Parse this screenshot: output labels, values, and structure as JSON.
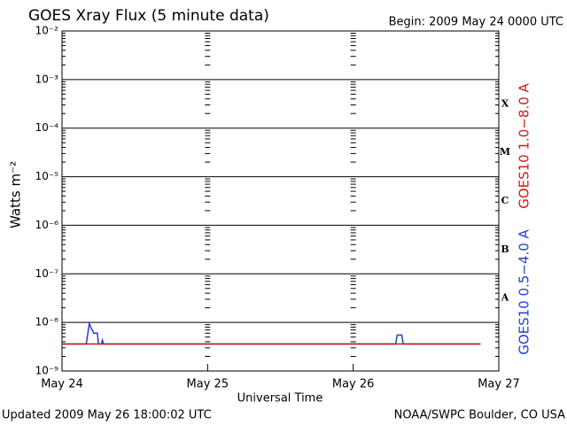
{
  "chart_data": {
    "type": "line",
    "title": "GOES Xray Flux (5 minute data)",
    "begin_label": "Begin:  2009 May 24 0000 UTC",
    "ylabel": "Watts m⁻²",
    "xlabel": "Universal Time",
    "updated": "Updated 2009 May 26 18:00:02 UTC",
    "source": "NOAA/SWPC Boulder, CO USA",
    "log_y": true,
    "grid": true,
    "ylim": [
      1e-09,
      0.01
    ],
    "yticks": [
      {
        "value": 1e-09,
        "label": "10⁻⁹"
      },
      {
        "value": 1e-08,
        "label": "10⁻⁸"
      },
      {
        "value": 1e-07,
        "label": "10⁻⁷"
      },
      {
        "value": 1e-06,
        "label": "10⁻⁶"
      },
      {
        "value": 1e-05,
        "label": "10⁻⁵"
      },
      {
        "value": 0.0001,
        "label": "10⁻⁴"
      },
      {
        "value": 0.001,
        "label": "10⁻³"
      },
      {
        "value": 0.01,
        "label": "10⁻²"
      }
    ],
    "xlim": [
      "2009-05-24 00:00",
      "2009-05-27 00:00"
    ],
    "xticks": [
      {
        "value": "2009-05-24 00:00",
        "label": "May 24"
      },
      {
        "value": "2009-05-25 00:00",
        "label": "May 25"
      },
      {
        "value": "2009-05-26 00:00",
        "label": "May 26"
      },
      {
        "value": "2009-05-27 00:00",
        "label": "May 27"
      }
    ],
    "flare_classes": [
      "X",
      "M",
      "C",
      "B",
      "A"
    ],
    "series": [
      {
        "name": "GOES10 0.5−4.0 A",
        "color": "#1f3fd0",
        "x": [
          "2009-05-24 00:00",
          "2009-05-24 04:00",
          "2009-05-24 04:30",
          "2009-05-24 04:50",
          "2009-05-24 05:15",
          "2009-05-24 05:50",
          "2009-05-24 06:00",
          "2009-05-24 06:30",
          "2009-05-24 06:40",
          "2009-05-24 06:50",
          "2009-05-26 07:00",
          "2009-05-26 07:15",
          "2009-05-26 08:00",
          "2009-05-26 08:15",
          "2009-05-26 21:00"
        ],
        "values": [
          3.6e-09,
          3.6e-09,
          9.5e-09,
          7.5e-09,
          6e-09,
          6e-09,
          3.6e-09,
          3.6e-09,
          4.3e-09,
          3.6e-09,
          3.6e-09,
          5.5e-09,
          5.5e-09,
          3.6e-09,
          3.6e-09
        ]
      },
      {
        "name": "GOES10 1.0−8.0 A",
        "color": "#d01818",
        "x": [
          "2009-05-24 00:00",
          "2009-05-26 21:00"
        ],
        "values": [
          3.6e-09,
          3.6e-09
        ]
      }
    ]
  }
}
